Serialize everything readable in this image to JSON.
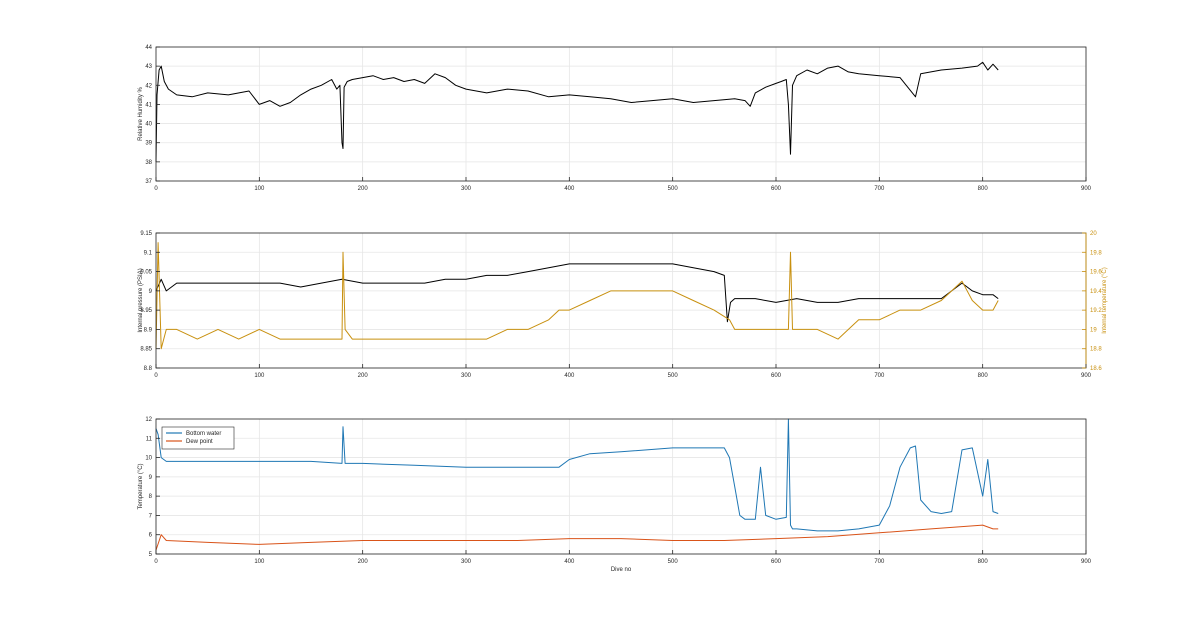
{
  "chart_data": [
    {
      "type": "line",
      "xlabel": "",
      "ylabel": "Relative Humidity %",
      "xlim": [
        0,
        900
      ],
      "ylim": [
        37,
        44
      ],
      "xticks": [
        0,
        100,
        200,
        300,
        400,
        500,
        600,
        700,
        800,
        900
      ],
      "yticks": [
        37,
        38,
        39,
        40,
        41,
        42,
        43,
        44
      ],
      "grid": true,
      "series": [
        {
          "color": "#000000",
          "x": [
            0,
            1,
            3,
            5,
            8,
            12,
            20,
            35,
            50,
            70,
            90,
            100,
            110,
            120,
            130,
            140,
            150,
            160,
            170,
            175,
            178,
            180,
            181,
            182,
            185,
            190,
            200,
            210,
            220,
            230,
            240,
            250,
            260,
            270,
            280,
            290,
            300,
            320,
            340,
            360,
            380,
            400,
            420,
            440,
            460,
            480,
            500,
            520,
            540,
            560,
            570,
            575,
            580,
            590,
            600,
            605,
            610,
            612,
            614,
            616,
            620,
            630,
            640,
            650,
            660,
            670,
            680,
            700,
            720,
            735,
            740,
            760,
            780,
            795,
            800,
            805,
            810,
            815
          ],
          "y": [
            38.0,
            41.5,
            42.8,
            43.0,
            42.2,
            41.8,
            41.5,
            41.4,
            41.6,
            41.5,
            41.7,
            41.0,
            41.2,
            40.9,
            41.1,
            41.5,
            41.8,
            42.0,
            42.3,
            41.8,
            42.0,
            39.0,
            38.7,
            41.9,
            42.2,
            42.3,
            42.4,
            42.5,
            42.3,
            42.4,
            42.2,
            42.3,
            42.1,
            42.6,
            42.4,
            42.0,
            41.8,
            41.6,
            41.8,
            41.7,
            41.4,
            41.5,
            41.4,
            41.3,
            41.1,
            41.2,
            41.3,
            41.1,
            41.2,
            41.3,
            41.2,
            40.9,
            41.6,
            41.9,
            42.1,
            42.2,
            42.3,
            41.0,
            38.4,
            42.0,
            42.5,
            42.8,
            42.6,
            42.9,
            43.0,
            42.7,
            42.6,
            42.5,
            42.4,
            41.4,
            42.6,
            42.8,
            42.9,
            43.0,
            43.2,
            42.8,
            43.1,
            42.8
          ]
        }
      ]
    },
    {
      "type": "line",
      "xlabel": "",
      "ylabel": "Internal pressure (PSIA)",
      "ylabel_right": "Internal temperature (°C)",
      "xlim": [
        0,
        900
      ],
      "ylim": [
        8.8,
        9.15
      ],
      "ylim_right": [
        18.6,
        20
      ],
      "xticks": [
        0,
        100,
        200,
        300,
        400,
        500,
        600,
        700,
        800,
        900
      ],
      "yticks": [
        8.8,
        8.85,
        8.9,
        8.95,
        9,
        9.05,
        9.1,
        9.15
      ],
      "yticks_right": [
        18.6,
        18.8,
        19,
        19.2,
        19.4,
        19.6,
        19.8,
        20
      ],
      "grid": true,
      "series": [
        {
          "axis": "left",
          "color": "#000000",
          "x": [
            0,
            5,
            10,
            20,
            40,
            60,
            80,
            100,
            120,
            140,
            160,
            180,
            200,
            220,
            240,
            260,
            280,
            300,
            320,
            340,
            360,
            380,
            400,
            420,
            440,
            460,
            480,
            500,
            520,
            540,
            550,
            553,
            556,
            560,
            580,
            600,
            620,
            640,
            660,
            680,
            700,
            720,
            740,
            760,
            780,
            790,
            800,
            810,
            815
          ],
          "y": [
            9.0,
            9.03,
            9.0,
            9.02,
            9.02,
            9.02,
            9.02,
            9.02,
            9.02,
            9.01,
            9.02,
            9.03,
            9.02,
            9.02,
            9.02,
            9.02,
            9.03,
            9.03,
            9.04,
            9.04,
            9.05,
            9.06,
            9.07,
            9.07,
            9.07,
            9.07,
            9.07,
            9.07,
            9.06,
            9.05,
            9.04,
            8.92,
            8.97,
            8.98,
            8.98,
            8.97,
            8.98,
            8.97,
            8.97,
            8.98,
            8.98,
            8.98,
            8.98,
            8.98,
            9.02,
            9.0,
            8.99,
            8.99,
            8.98
          ]
        },
        {
          "axis": "right",
          "color": "#c8900f",
          "x": [
            0,
            2,
            5,
            10,
            20,
            40,
            60,
            80,
            100,
            120,
            140,
            160,
            180,
            181,
            183,
            190,
            200,
            220,
            240,
            260,
            280,
            300,
            320,
            340,
            360,
            380,
            390,
            400,
            420,
            440,
            460,
            480,
            500,
            520,
            540,
            555,
            560,
            580,
            600,
            612,
            614,
            616,
            620,
            640,
            660,
            680,
            700,
            720,
            740,
            760,
            780,
            790,
            800,
            810,
            815
          ],
          "y": [
            18.8,
            19.9,
            18.8,
            19.0,
            19.0,
            18.9,
            19.0,
            18.9,
            19.0,
            18.9,
            18.9,
            18.9,
            18.9,
            19.8,
            19.0,
            18.9,
            18.9,
            18.9,
            18.9,
            18.9,
            18.9,
            18.9,
            18.9,
            19.0,
            19.0,
            19.1,
            19.2,
            19.2,
            19.3,
            19.4,
            19.4,
            19.4,
            19.4,
            19.3,
            19.2,
            19.1,
            19.0,
            19.0,
            19.0,
            19.0,
            19.8,
            19.0,
            19.0,
            19.0,
            18.9,
            19.1,
            19.1,
            19.2,
            19.2,
            19.3,
            19.5,
            19.3,
            19.2,
            19.2,
            19.3
          ]
        }
      ]
    },
    {
      "type": "line",
      "xlabel": "Dive no",
      "ylabel": "Temperature (°C)",
      "xlim": [
        0,
        900
      ],
      "ylim": [
        5,
        12
      ],
      "xticks": [
        0,
        100,
        200,
        300,
        400,
        500,
        600,
        700,
        800,
        900
      ],
      "yticks": [
        5,
        6,
        7,
        8,
        9,
        10,
        11,
        12
      ],
      "grid": true,
      "legend": "top-left",
      "series": [
        {
          "name": "Bottom water",
          "color": "#1f77b4",
          "x": [
            0,
            2,
            5,
            10,
            50,
            100,
            150,
            180,
            181,
            183,
            200,
            250,
            300,
            350,
            390,
            400,
            420,
            450,
            500,
            530,
            550,
            555,
            560,
            565,
            570,
            580,
            585,
            590,
            600,
            610,
            612,
            614,
            616,
            620,
            640,
            660,
            680,
            700,
            710,
            720,
            730,
            735,
            740,
            750,
            760,
            770,
            780,
            790,
            800,
            805,
            810,
            815
          ],
          "y": [
            11.5,
            11.2,
            10.0,
            9.8,
            9.8,
            9.8,
            9.8,
            9.7,
            11.6,
            9.7,
            9.7,
            9.6,
            9.5,
            9.5,
            9.5,
            9.9,
            10.2,
            10.3,
            10.5,
            10.5,
            10.5,
            10.0,
            8.5,
            7.0,
            6.8,
            6.8,
            9.5,
            7.0,
            6.8,
            6.9,
            12.0,
            6.5,
            6.3,
            6.3,
            6.2,
            6.2,
            6.3,
            6.5,
            7.5,
            9.5,
            10.5,
            10.6,
            7.8,
            7.2,
            7.1,
            7.2,
            10.4,
            10.5,
            8.0,
            9.9,
            7.2,
            7.1
          ]
        },
        {
          "name": "Dew point",
          "color": "#d95319",
          "x": [
            0,
            5,
            10,
            50,
            100,
            150,
            200,
            250,
            300,
            350,
            400,
            450,
            500,
            550,
            600,
            650,
            700,
            750,
            800,
            810,
            815
          ],
          "y": [
            5.2,
            6.0,
            5.7,
            5.6,
            5.5,
            5.6,
            5.7,
            5.7,
            5.7,
            5.7,
            5.8,
            5.8,
            5.7,
            5.7,
            5.8,
            5.9,
            6.1,
            6.3,
            6.5,
            6.3,
            6.3
          ]
        }
      ]
    }
  ]
}
